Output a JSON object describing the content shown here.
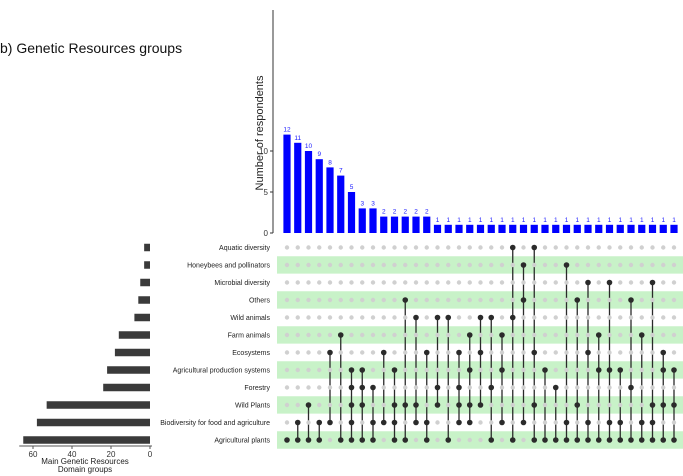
{
  "panel_title": "b) Genetic Resources groups",
  "colors": {
    "bar": "#0000FF",
    "bar_label": "#1a1aff",
    "set_bar": "#3a3a3a",
    "dot_on": "#2b2b2b",
    "dot_off": "#d0d0d0",
    "band_even": "#ffffff",
    "band_odd": "#c8f2c8"
  },
  "chart_data": [
    {
      "type": "bar",
      "ylabel": "Number of respondents",
      "ylim": [
        0,
        13
      ],
      "yticks": [
        0,
        5,
        10
      ],
      "values": [
        12,
        11,
        10,
        9,
        8,
        7,
        5,
        3,
        3,
        2,
        2,
        2,
        2,
        2,
        1,
        1,
        1,
        1,
        1,
        1,
        1,
        1,
        1,
        1,
        1,
        1,
        1,
        1,
        1,
        1,
        1,
        1,
        1,
        1,
        1,
        1,
        1
      ],
      "data_labels": [
        12,
        11,
        10,
        9,
        8,
        7,
        5,
        3,
        3,
        2,
        2,
        2,
        2,
        2,
        1,
        1,
        1,
        1,
        1,
        1,
        1,
        1,
        1,
        1,
        1,
        1,
        1,
        1,
        1,
        1,
        1,
        1,
        1,
        1,
        1,
        1,
        1
      ]
    },
    {
      "type": "bar",
      "orientation": "horizontal",
      "xlabel": "Main Genetic Resources Domain groups",
      "xlabel_lines": [
        "Main Genetic Resources",
        "Domain groups"
      ],
      "xlim": [
        0,
        65
      ],
      "xticks": [
        60,
        40,
        20,
        0
      ],
      "categories": [
        "Aquatic diversity",
        "Honeybees and pollinators",
        "Microbial diversity",
        "Others",
        "Wild animals",
        "Farm animals",
        "Ecosystems",
        "Agricultural production systems",
        "Forestry",
        "Wild Plants",
        "Biodiversity for food and agriculture",
        "Agricultural plants"
      ],
      "values": [
        3,
        3,
        5,
        6,
        8,
        16,
        18,
        22,
        24,
        53,
        58,
        65
      ]
    },
    {
      "type": "table",
      "description": "membership matrix",
      "memberships": [
        [
          11
        ],
        [
          10,
          11
        ],
        [
          9,
          11
        ],
        [
          10,
          11
        ],
        [
          6,
          10
        ],
        [
          5,
          11
        ],
        [
          7,
          8,
          9,
          10,
          11
        ],
        [
          7,
          8,
          9,
          11
        ],
        [
          8,
          10,
          11
        ],
        [
          6,
          10
        ],
        [
          7,
          9,
          10,
          11
        ],
        [
          3,
          9,
          11
        ],
        [
          4,
          9,
          10
        ],
        [
          6,
          10,
          11
        ],
        [
          4,
          8,
          9
        ],
        [
          4,
          11
        ],
        [
          6,
          8,
          9,
          10
        ],
        [
          5,
          7,
          9,
          10
        ],
        [
          4,
          6,
          9
        ],
        [
          4,
          8,
          11
        ],
        [
          5,
          7,
          10
        ],
        [
          0,
          4,
          11
        ],
        [
          1,
          3,
          10
        ],
        [
          0,
          6,
          9,
          11
        ],
        [
          7,
          11
        ],
        [
          8,
          11
        ],
        [
          1,
          10,
          11
        ],
        [
          3,
          9,
          11
        ],
        [
          2,
          6,
          10,
          11
        ],
        [
          5,
          7,
          11
        ],
        [
          2,
          7,
          10,
          11
        ],
        [
          7,
          10,
          11
        ],
        [
          3,
          8,
          11
        ],
        [
          5,
          10,
          11
        ],
        [
          2,
          9,
          10,
          11
        ],
        [
          6,
          7,
          9,
          11
        ],
        [
          7,
          9,
          11
        ]
      ]
    }
  ]
}
